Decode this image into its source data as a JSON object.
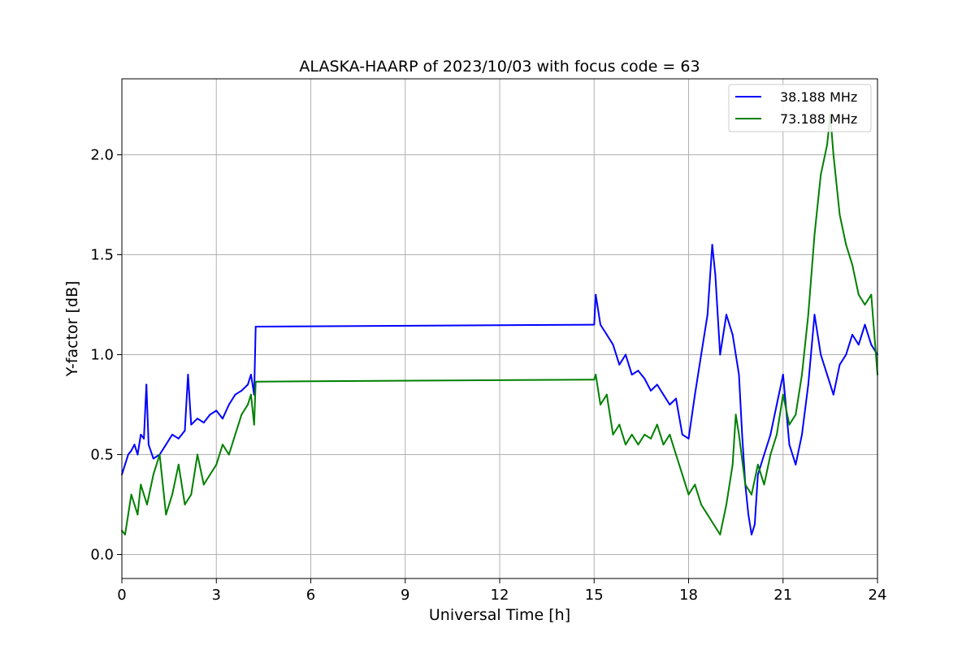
{
  "chart_data": {
    "type": "line",
    "title": "ALASKA-HAARP of 2023/10/03 with focus code = 63",
    "xlabel": "Universal Time [h]",
    "ylabel": "Y-factor [dB]",
    "xlim": [
      0,
      24
    ],
    "ylim": [
      -0.12,
      2.38
    ],
    "xticks": [
      0,
      3,
      6,
      9,
      12,
      15,
      18,
      21,
      24
    ],
    "xtick_labels": [
      "0",
      "3",
      "6",
      "9",
      "12",
      "15",
      "18",
      "21",
      "24"
    ],
    "yticks": [
      0.0,
      0.5,
      1.0,
      1.5,
      2.0
    ],
    "ytick_labels": [
      "0.0",
      "0.5",
      "1.0",
      "1.5",
      "2.0"
    ],
    "grid": true,
    "legend_position": "top-right",
    "series": [
      {
        "name": "38.188 MHz",
        "color": "#0000ff",
        "x": [
          0.0,
          0.1,
          0.2,
          0.3,
          0.4,
          0.5,
          0.6,
          0.7,
          0.78,
          0.85,
          1.0,
          1.2,
          1.4,
          1.6,
          1.8,
          2.0,
          2.1,
          2.2,
          2.4,
          2.6,
          2.8,
          3.0,
          3.2,
          3.4,
          3.6,
          3.8,
          4.0,
          4.1,
          4.2,
          4.25,
          4.3,
          15.0,
          15.05,
          15.2,
          15.4,
          15.6,
          15.8,
          16.0,
          16.2,
          16.4,
          16.6,
          16.8,
          17.0,
          17.2,
          17.4,
          17.6,
          17.8,
          18.0,
          18.2,
          18.4,
          18.6,
          18.75,
          18.85,
          19.0,
          19.2,
          19.4,
          19.6,
          19.7,
          19.8,
          19.9,
          20.0,
          20.1,
          20.2,
          20.4,
          20.6,
          20.8,
          21.0,
          21.2,
          21.4,
          21.6,
          21.8,
          22.0,
          22.2,
          22.4,
          22.6,
          22.8,
          23.0,
          23.2,
          23.4,
          23.6,
          23.8,
          24.0
        ],
        "values": [
          0.4,
          0.45,
          0.5,
          0.52,
          0.55,
          0.5,
          0.6,
          0.58,
          0.85,
          0.55,
          0.48,
          0.5,
          0.55,
          0.6,
          0.58,
          0.62,
          0.9,
          0.65,
          0.68,
          0.66,
          0.7,
          0.72,
          0.68,
          0.75,
          0.8,
          0.82,
          0.85,
          0.9,
          0.8,
          1.14,
          1.14,
          1.15,
          1.3,
          1.15,
          1.1,
          1.05,
          0.95,
          1.0,
          0.9,
          0.92,
          0.88,
          0.82,
          0.85,
          0.8,
          0.75,
          0.78,
          0.6,
          0.58,
          0.8,
          1.0,
          1.2,
          1.55,
          1.4,
          1.0,
          1.2,
          1.1,
          0.9,
          0.6,
          0.35,
          0.2,
          0.1,
          0.15,
          0.4,
          0.5,
          0.6,
          0.75,
          0.9,
          0.55,
          0.45,
          0.6,
          0.85,
          1.2,
          1.0,
          0.9,
          0.8,
          0.95,
          1.0,
          1.1,
          1.05,
          1.15,
          1.05,
          1.0
        ]
      },
      {
        "name": "73.188 MHz",
        "color": "#008000",
        "x": [
          0.0,
          0.1,
          0.2,
          0.3,
          0.4,
          0.5,
          0.6,
          0.7,
          0.8,
          1.0,
          1.2,
          1.4,
          1.6,
          1.8,
          2.0,
          2.2,
          2.4,
          2.6,
          2.8,
          3.0,
          3.2,
          3.4,
          3.6,
          3.8,
          4.0,
          4.1,
          4.2,
          4.25,
          4.3,
          15.0,
          15.05,
          15.2,
          15.4,
          15.6,
          15.8,
          16.0,
          16.2,
          16.4,
          16.6,
          16.8,
          17.0,
          17.2,
          17.4,
          17.6,
          17.8,
          18.0,
          18.2,
          18.4,
          18.6,
          18.8,
          19.0,
          19.2,
          19.4,
          19.5,
          19.6,
          19.8,
          20.0,
          20.2,
          20.4,
          20.6,
          20.8,
          21.0,
          21.2,
          21.4,
          21.6,
          21.8,
          22.0,
          22.2,
          22.4,
          22.5,
          22.6,
          22.8,
          23.0,
          23.2,
          23.4,
          23.6,
          23.8,
          24.0
        ],
        "values": [
          0.12,
          0.1,
          0.2,
          0.3,
          0.25,
          0.2,
          0.35,
          0.3,
          0.25,
          0.4,
          0.5,
          0.2,
          0.3,
          0.45,
          0.25,
          0.3,
          0.5,
          0.35,
          0.4,
          0.45,
          0.55,
          0.5,
          0.6,
          0.7,
          0.75,
          0.8,
          0.65,
          0.865,
          0.865,
          0.875,
          0.9,
          0.75,
          0.8,
          0.6,
          0.65,
          0.55,
          0.6,
          0.55,
          0.6,
          0.58,
          0.65,
          0.55,
          0.6,
          0.5,
          0.4,
          0.3,
          0.35,
          0.25,
          0.2,
          0.15,
          0.1,
          0.25,
          0.45,
          0.7,
          0.6,
          0.35,
          0.3,
          0.45,
          0.35,
          0.5,
          0.6,
          0.8,
          0.65,
          0.7,
          0.9,
          1.2,
          1.6,
          1.9,
          2.05,
          2.2,
          2.0,
          1.7,
          1.55,
          1.45,
          1.3,
          1.25,
          1.3,
          0.9
        ]
      }
    ]
  }
}
